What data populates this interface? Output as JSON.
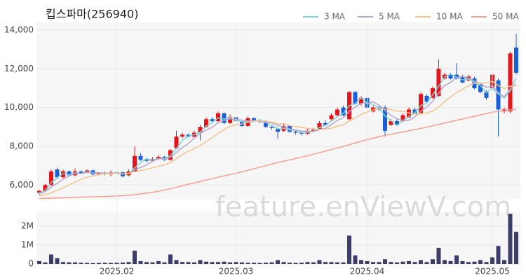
{
  "chart_data": [
    {
      "type": "candlestick",
      "title": "킵스파마(256940)",
      "watermark": "feature.enViewV.com",
      "categories": [
        null,
        null,
        null,
        null,
        null,
        null,
        null,
        null,
        null,
        null,
        null,
        null,
        null,
        "2025.02",
        null,
        null,
        null,
        null,
        null,
        null,
        null,
        null,
        null,
        null,
        null,
        null,
        null,
        null,
        null,
        null,
        null,
        null,
        null,
        "2025.03",
        null,
        null,
        null,
        null,
        null,
        null,
        null,
        null,
        null,
        null,
        null,
        null,
        null,
        null,
        null,
        null,
        null,
        null,
        null,
        null,
        null,
        "2025.04",
        null,
        null,
        null,
        null,
        null,
        null,
        null,
        null,
        null,
        null,
        null,
        null,
        null,
        null,
        null,
        null,
        null,
        null,
        null,
        null,
        "2025.05",
        null,
        null,
        null,
        null
      ],
      "open": [
        5600,
        5700,
        6000,
        6800,
        6400,
        6700,
        6500,
        6700,
        6650,
        6750,
        6550,
        6600,
        6550,
        6650,
        6650,
        6500,
        6700,
        7500,
        7350,
        7250,
        7350,
        7450,
        7300,
        7900,
        8500,
        8600,
        8500,
        8700,
        9000,
        9400,
        9300,
        9700,
        9200,
        9500,
        9250,
        9050,
        9450,
        9350,
        9300,
        9000,
        8900,
        8800,
        9050,
        8750,
        8700,
        8650,
        8800,
        8900,
        9200,
        9400,
        9600,
        10000,
        9400,
        10800,
        10200,
        10500,
        9800,
        10000,
        10000,
        9100,
        9300,
        9300,
        9500,
        9900,
        9700,
        10600,
        10500,
        10600,
        11500,
        11700,
        11700,
        11600,
        11400,
        11500,
        11200,
        10800,
        11000,
        11400,
        9800,
        9800,
        13100
      ],
      "high": [
        5750,
        6050,
        6800,
        6900,
        6800,
        6750,
        6850,
        6750,
        6800,
        6800,
        6650,
        6700,
        6750,
        6700,
        6700,
        6800,
        8000,
        7650,
        7400,
        7450,
        7550,
        7500,
        7850,
        8800,
        8700,
        8650,
        8800,
        9100,
        9500,
        9500,
        9800,
        9750,
        9650,
        9800,
        9300,
        9550,
        9500,
        9400,
        9350,
        9050,
        8950,
        9200,
        9100,
        8800,
        8750,
        8900,
        8950,
        9300,
        9350,
        9700,
        10000,
        10100,
        10850,
        10850,
        10600,
        10600,
        10100,
        10100,
        10100,
        9400,
        9400,
        9700,
        10000,
        10000,
        10800,
        10700,
        11100,
        12500,
        11800,
        11800,
        12300,
        11700,
        11700,
        11600,
        11300,
        10900,
        11800,
        11500,
        10000,
        12900,
        13800
      ],
      "low": [
        5500,
        5650,
        5950,
        6300,
        6350,
        6450,
        6450,
        6550,
        6600,
        6500,
        6500,
        6500,
        6450,
        6500,
        6400,
        6450,
        6700,
        7250,
        7150,
        7200,
        7300,
        7250,
        7250,
        7850,
        8400,
        8450,
        8450,
        8300,
        8950,
        9200,
        9250,
        9150,
        9150,
        9250,
        9000,
        9000,
        9300,
        9200,
        8950,
        8850,
        8400,
        8750,
        8700,
        8600,
        8550,
        8600,
        8750,
        8850,
        9050,
        9300,
        9550,
        9550,
        9350,
        10150,
        10100,
        9950,
        9750,
        9850,
        8500,
        9050,
        9050,
        9250,
        9450,
        9650,
        9650,
        10250,
        10450,
        10550,
        11450,
        11450,
        11450,
        11250,
        11350,
        10950,
        10750,
        10400,
        10400,
        8500,
        9700,
        9700,
        11700
      ],
      "close": [
        5700,
        6000,
        6700,
        6400,
        6700,
        6500,
        6700,
        6600,
        6750,
        6550,
        6600,
        6550,
        6650,
        6600,
        6450,
        6700,
        7500,
        7300,
        7250,
        7350,
        7450,
        7300,
        7800,
        8500,
        8600,
        8500,
        8700,
        9000,
        9400,
        9300,
        9700,
        9200,
        9500,
        9300,
        9050,
        9450,
        9350,
        9300,
        9000,
        8950,
        8750,
        9050,
        8750,
        8700,
        8650,
        8800,
        8900,
        9200,
        9100,
        9600,
        9900,
        9600,
        10800,
        10200,
        10500,
        10000,
        10000,
        9900,
        8800,
        9300,
        9100,
        9600,
        9900,
        9700,
        10700,
        10300,
        11000,
        12000,
        11700,
        11500,
        11500,
        11300,
        11600,
        11000,
        10800,
        10500,
        11700,
        9900,
        9900,
        12800,
        11800
      ],
      "up_color": "#e8141b",
      "down_color": "#1d5fd6",
      "series": [
        {
          "name": "3 MA",
          "color": "#7fd3d3",
          "values": [
            5600,
            5700,
            6130,
            6370,
            6600,
            6530,
            6630,
            6600,
            6680,
            6630,
            6630,
            6570,
            6600,
            6600,
            6570,
            6580,
            6880,
            7170,
            7350,
            7300,
            7350,
            7370,
            7520,
            7870,
            8300,
            8530,
            8600,
            8730,
            9030,
            9230,
            9470,
            9400,
            9470,
            9330,
            9280,
            9270,
            9280,
            9370,
            9220,
            9080,
            8900,
            8920,
            8850,
            8830,
            8700,
            8720,
            8780,
            8970,
            9070,
            9300,
            9530,
            9700,
            10100,
            10200,
            10500,
            10230,
            10170,
            9970,
            9570,
            9330,
            9070,
            9330,
            9530,
            9730,
            10100,
            10230,
            10670,
            11100,
            11570,
            11730,
            11570,
            11430,
            11470,
            11300,
            11130,
            10770,
            11000,
            10700,
            10500,
            10870,
            11530
          ]
        },
        {
          "name": "5 MA",
          "color": "#b7a5cf",
          "values": [
            5550,
            5650,
            5900,
            6080,
            6300,
            6460,
            6600,
            6580,
            6650,
            6620,
            6640,
            6610,
            6620,
            6590,
            6570,
            6590,
            6780,
            6910,
            7040,
            7220,
            7370,
            7330,
            7430,
            7680,
            7930,
            8140,
            8420,
            8660,
            8840,
            8980,
            9220,
            9320,
            9420,
            9400,
            9350,
            9300,
            9330,
            9290,
            9230,
            9210,
            9070,
            9010,
            8900,
            8840,
            8780,
            8790,
            8760,
            8850,
            8930,
            9120,
            9340,
            9480,
            9800,
            10020,
            10220,
            10220,
            10300,
            10120,
            9840,
            9600,
            9420,
            9340,
            9340,
            9520,
            9800,
            10040,
            10320,
            10740,
            11140,
            11300,
            11540,
            11600,
            11520,
            11380,
            11240,
            11040,
            11120,
            10780,
            10560,
            10960,
            11220
          ]
        },
        {
          "name": "10 MA",
          "color": "#f0c48c",
          "values": [
            5450,
            5500,
            5600,
            5720,
            5850,
            6000,
            6150,
            6300,
            6400,
            6460,
            6550,
            6580,
            6580,
            6600,
            6570,
            6600,
            6680,
            6750,
            6810,
            6890,
            6970,
            7040,
            7160,
            7350,
            7570,
            7750,
            7870,
            8040,
            8250,
            8440,
            8670,
            8860,
            9030,
            9110,
            9150,
            9240,
            9300,
            9330,
            9290,
            9250,
            9160,
            9150,
            9070,
            9010,
            8980,
            8920,
            8880,
            8870,
            8880,
            8940,
            9050,
            9100,
            9310,
            9460,
            9650,
            9770,
            9880,
            9950,
            9920,
            9890,
            9810,
            9810,
            9720,
            9670,
            9690,
            9720,
            9820,
            10030,
            10320,
            10540,
            10780,
            10950,
            11120,
            11250,
            11260,
            11280,
            11350,
            11140,
            10970,
            11110,
            11140
          ]
        },
        {
          "name": "50 MA",
          "color": "#f4a090",
          "values": [
            5300,
            5310,
            5320,
            5330,
            5340,
            5350,
            5360,
            5370,
            5380,
            5390,
            5400,
            5410,
            5420,
            5430,
            5450,
            5470,
            5500,
            5540,
            5580,
            5620,
            5680,
            5740,
            5800,
            5880,
            5960,
            6040,
            6110,
            6180,
            6260,
            6330,
            6400,
            6470,
            6540,
            6610,
            6680,
            6760,
            6840,
            6920,
            7000,
            7080,
            7160,
            7230,
            7300,
            7370,
            7440,
            7510,
            7590,
            7670,
            7750,
            7830,
            7910,
            7990,
            8080,
            8170,
            8260,
            8340,
            8420,
            8500,
            8560,
            8620,
            8680,
            8740,
            8800,
            8860,
            8920,
            8990,
            9060,
            9130,
            9200,
            9270,
            9340,
            9410,
            9480,
            9550,
            9620,
            9690,
            9760,
            9800,
            9840,
            9880,
            9910
          ]
        }
      ],
      "ylim": [
        5250,
        14400
      ],
      "yticks": [
        {
          "value": 6000,
          "label": "6,000"
        },
        {
          "value": 8000,
          "label": "8,000"
        },
        {
          "value": 10000,
          "label": "10,000"
        },
        {
          "value": 12000,
          "label": "12,000"
        },
        {
          "value": 14000,
          "label": "14,000"
        }
      ],
      "grid": true
    },
    {
      "type": "bar",
      "color": "#3d3d6b",
      "values": [
        150000,
        80000,
        500000,
        300000,
        100000,
        80000,
        80000,
        60000,
        50000,
        40000,
        50000,
        60000,
        50000,
        60000,
        70000,
        100000,
        700000,
        150000,
        100000,
        80000,
        150000,
        80000,
        500000,
        200000,
        100000,
        100000,
        80000,
        200000,
        120000,
        100000,
        100000,
        120000,
        80000,
        100000,
        80000,
        60000,
        60000,
        50000,
        60000,
        80000,
        200000,
        100000,
        60000,
        50000,
        60000,
        100000,
        80000,
        200000,
        100000,
        100000,
        80000,
        80000,
        1500000,
        450000,
        200000,
        150000,
        100000,
        100000,
        250000,
        100000,
        80000,
        120000,
        150000,
        100000,
        200000,
        100000,
        250000,
        850000,
        200000,
        150000,
        450000,
        150000,
        100000,
        120000,
        200000,
        100000,
        350000,
        950000,
        200000,
        2650000,
        1700000
      ],
      "ylim": [
        0,
        2780000
      ],
      "yticks": [
        0,
        {
          "value": 1000000,
          "label": "1M"
        },
        {
          "value": 2000000,
          "label": "2M"
        }
      ],
      "grid": true
    }
  ]
}
